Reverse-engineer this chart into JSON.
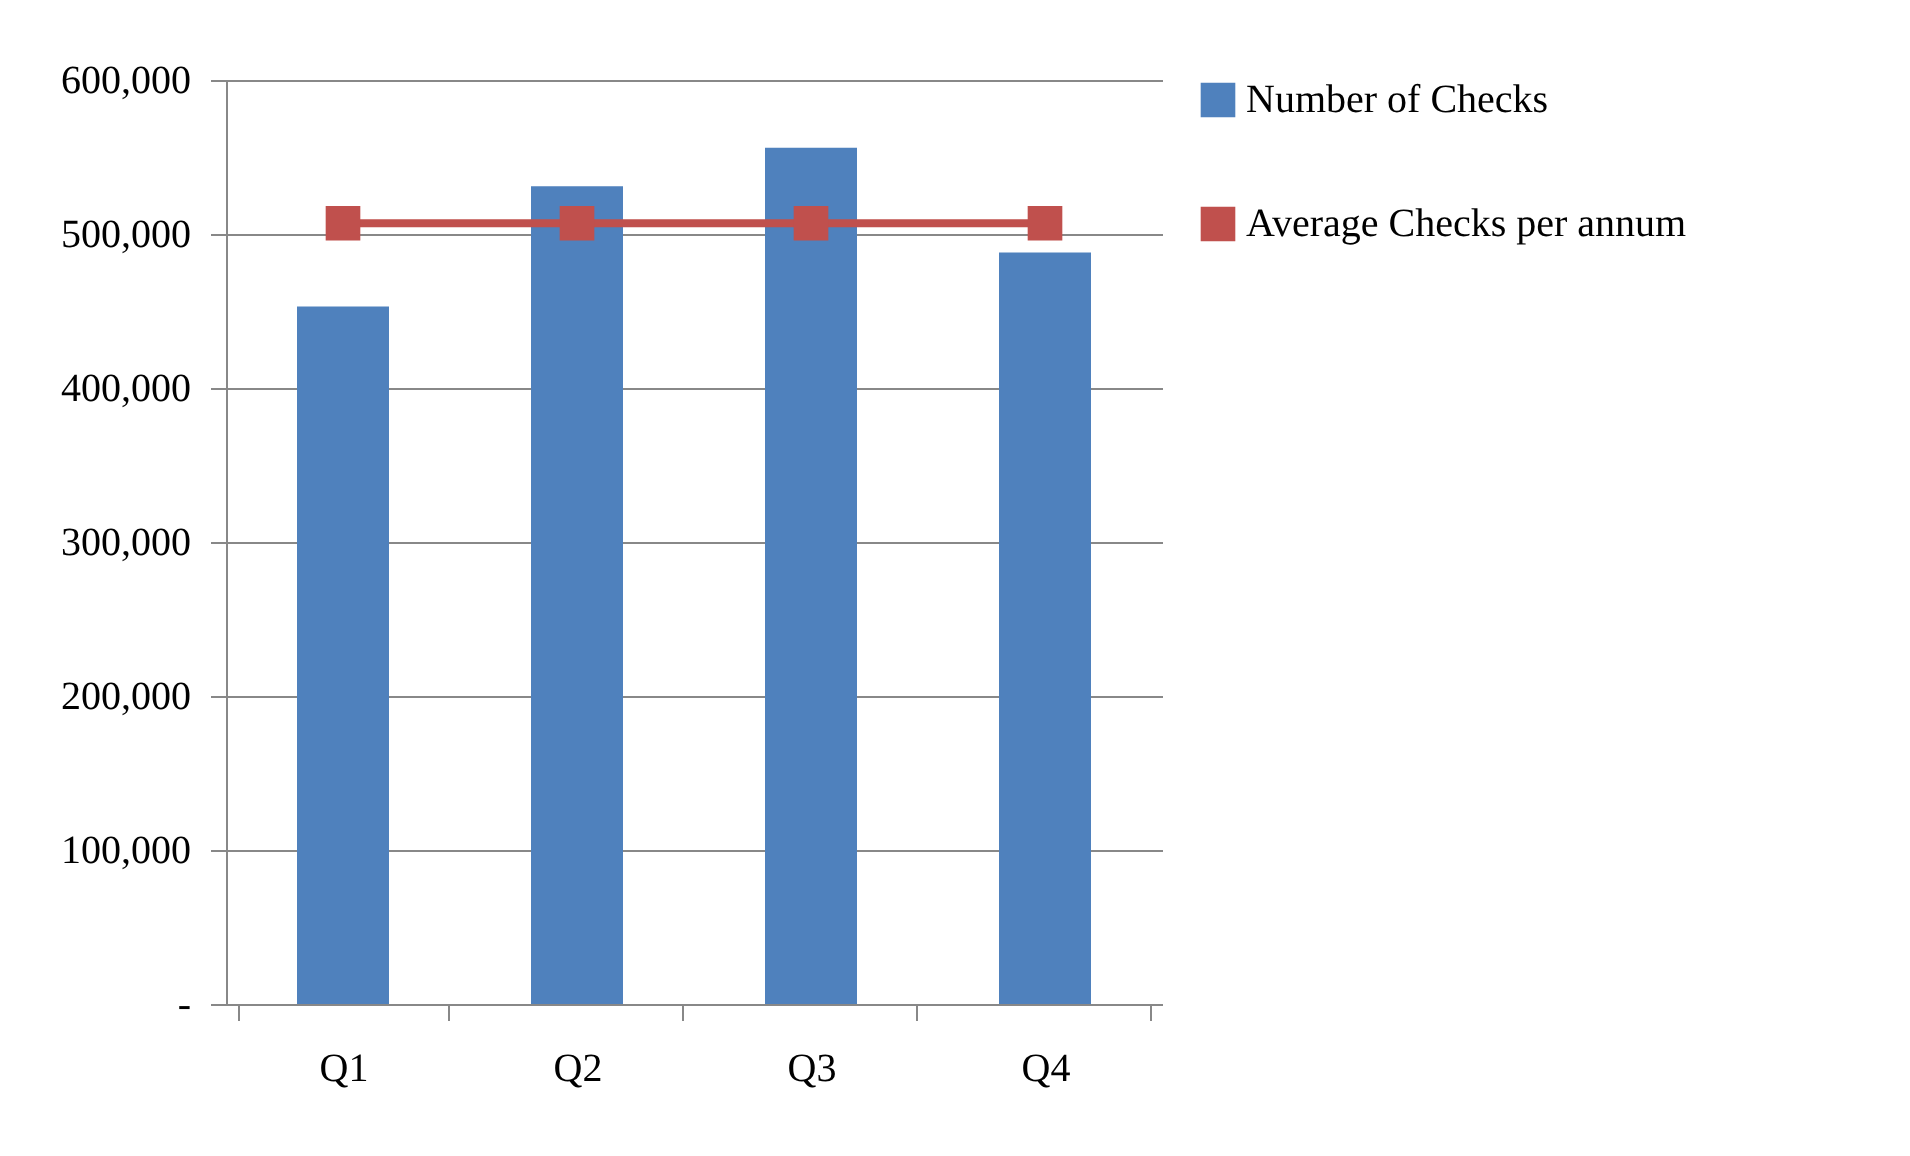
{
  "chart_data": {
    "type": "bar",
    "categories": [
      "Q1",
      "Q2",
      "Q3",
      "Q4"
    ],
    "series": [
      {
        "name": "Number of Checks",
        "color": "#4f81bd",
        "values": [
          453000,
          531000,
          556000,
          488000
        ]
      },
      {
        "name": "Average Checks per annum",
        "type": "line",
        "color": "#c0504d",
        "values": [
          507000,
          507000,
          507000,
          507000
        ],
        "marker": "square"
      }
    ],
    "ylim": [
      0,
      600000
    ],
    "yticks": [
      {
        "value": 0,
        "label": "-"
      },
      {
        "value": 100000,
        "label": "100,000"
      },
      {
        "value": 200000,
        "label": "200,000"
      },
      {
        "value": 300000,
        "label": "300,000"
      },
      {
        "value": 400000,
        "label": "400,000"
      },
      {
        "value": 500000,
        "label": "500,000"
      },
      {
        "value": 600000,
        "label": "600,000"
      }
    ],
    "grid": "y",
    "legend": "right"
  }
}
